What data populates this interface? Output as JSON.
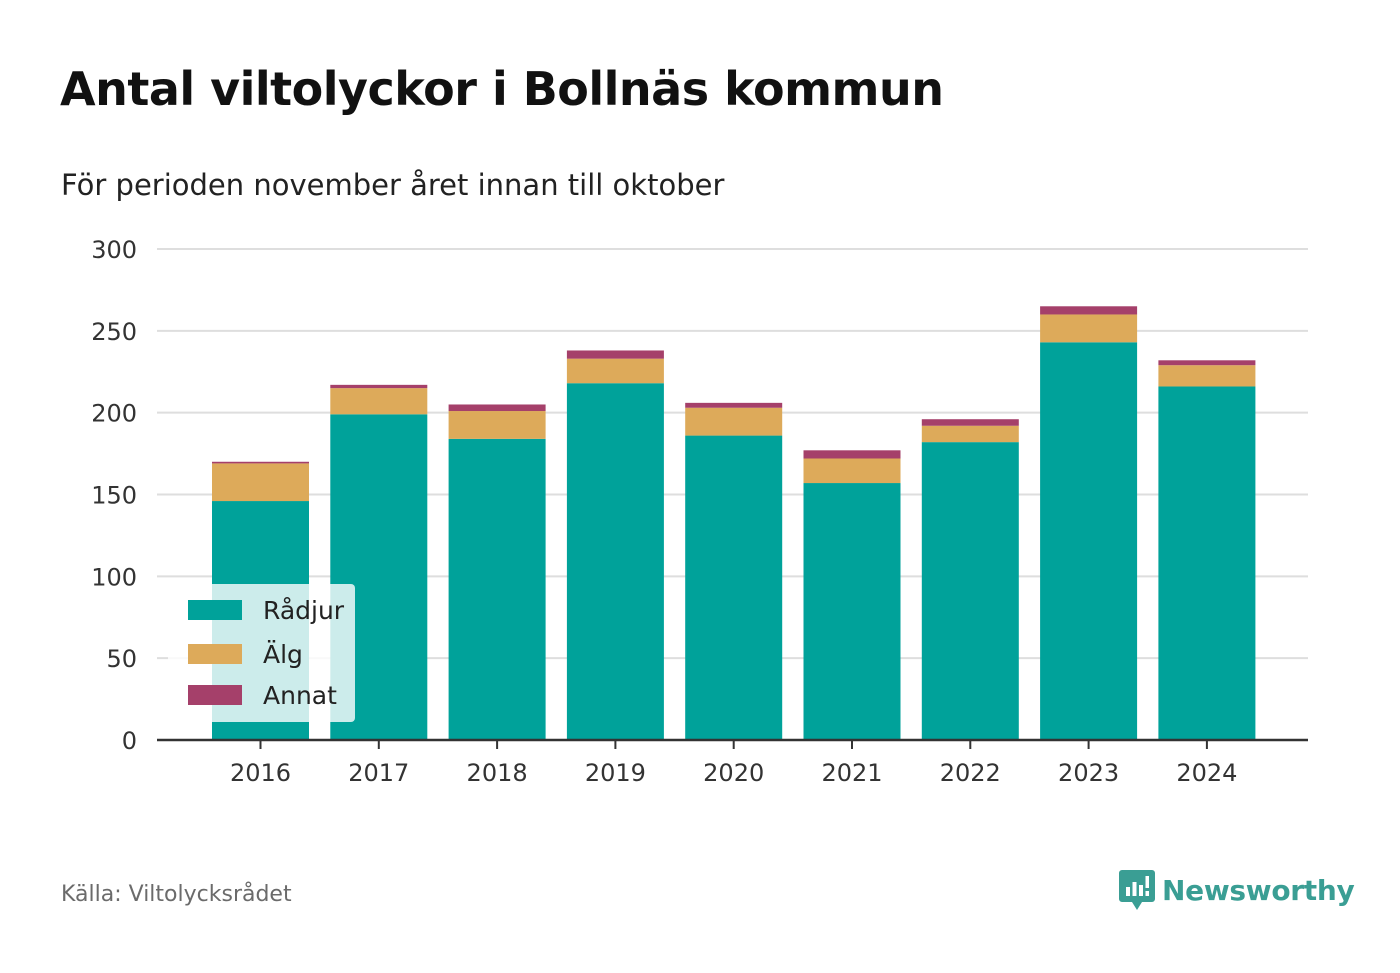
{
  "title": "Antal viltolyckor i Bollnäs kommun",
  "subtitle": "För perioden november året innan till oktober",
  "source": "Källa: Viltolycksrådet",
  "brand": {
    "name": "Newsworthy",
    "icon": "newsworthy-logo-icon",
    "color": "#3a9e94"
  },
  "legend": [
    {
      "label": "Rådjur",
      "color": "#00a29a"
    },
    {
      "label": "Älg",
      "color": "#ddaa5a"
    },
    {
      "label": "Annat",
      "color": "#a5406a"
    }
  ],
  "chart_data": {
    "type": "bar",
    "stacked": true,
    "title": "Antal viltolyckor i Bollnäs kommun",
    "subtitle": "För perioden november året innan till oktober",
    "categories": [
      "2016",
      "2017",
      "2018",
      "2019",
      "2020",
      "2021",
      "2022",
      "2023",
      "2024"
    ],
    "series": [
      {
        "name": "Rådjur",
        "color": "#00a29a",
        "values": [
          146,
          199,
          184,
          218,
          186,
          157,
          182,
          243,
          216
        ]
      },
      {
        "name": "Älg",
        "color": "#ddaa5a",
        "values": [
          23,
          16,
          17,
          15,
          17,
          15,
          10,
          17,
          13
        ]
      },
      {
        "name": "Annat",
        "color": "#a5406a",
        "values": [
          1,
          2,
          4,
          5,
          3,
          5,
          4,
          5,
          3
        ]
      }
    ],
    "ylim": [
      0,
      300
    ],
    "yticks": [
      0,
      50,
      100,
      150,
      200,
      250,
      300
    ],
    "grid": true,
    "legend_position": "bottom-left"
  }
}
